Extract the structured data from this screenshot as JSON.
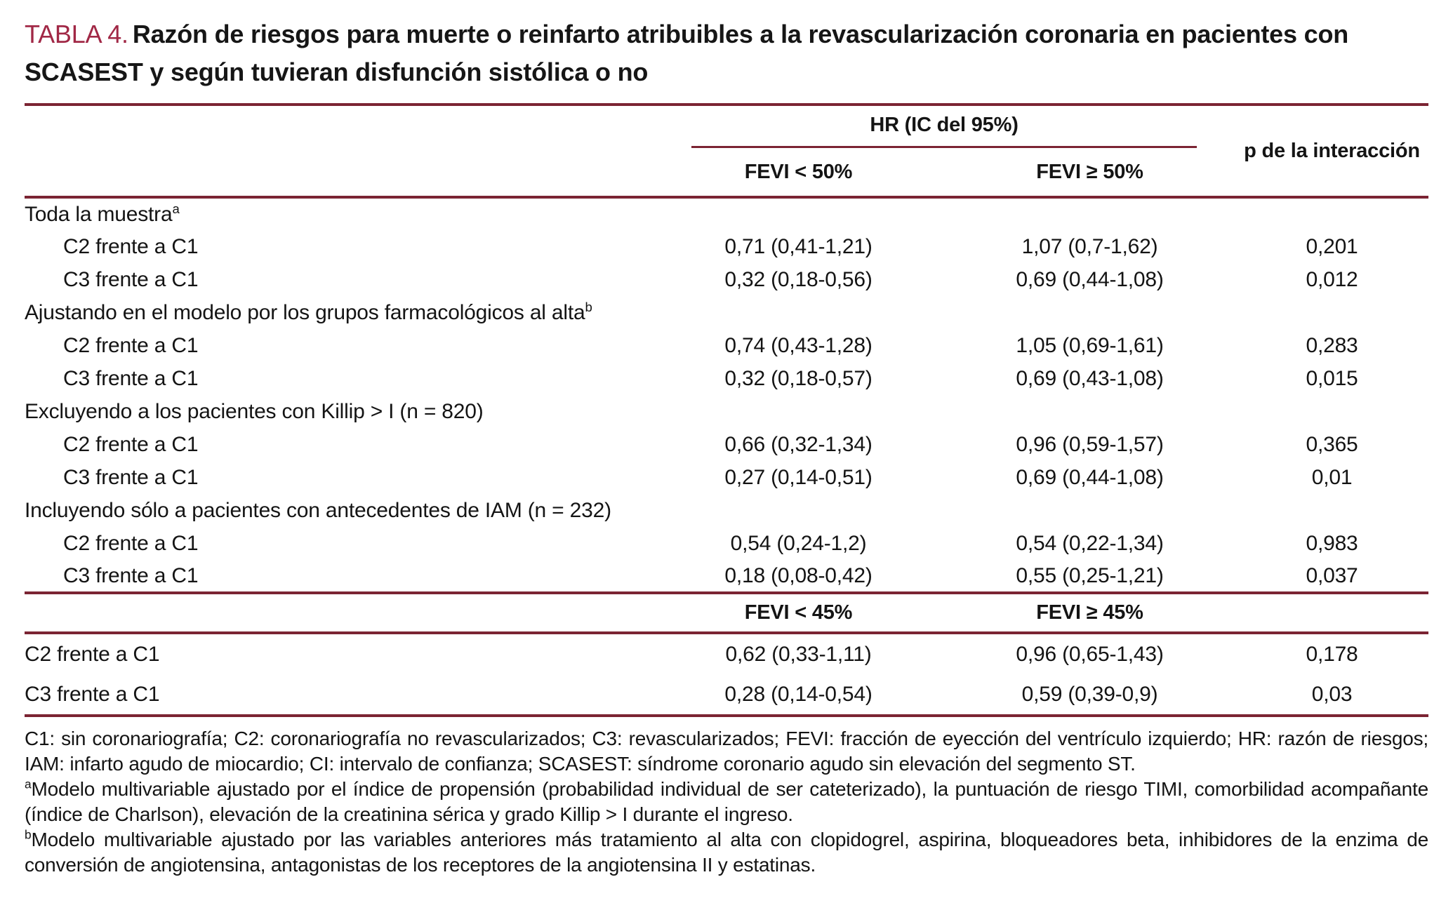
{
  "title": {
    "label": "TABLA 4.",
    "line1": "Razón de riesgos para muerte o reinfarto atribuibles a la revascularización coronaria en pacientes con",
    "line2": "SCASEST y según tuvieran disfunción sistólica o no"
  },
  "colors": {
    "rule": "#7B2433",
    "table_number": "#A12846",
    "text": "#141414"
  },
  "table": {
    "span_header": "HR (IC del 95%)",
    "p_header": "p de la interacción",
    "upper_columns": [
      "FEVI < 50%",
      "FEVI ≥ 50%"
    ],
    "lower_columns": [
      "FEVI < 45%",
      "FEVI ≥ 45%"
    ],
    "sections": [
      {
        "header": "Toda la muestra",
        "header_sup": "a",
        "rows": [
          {
            "label": "C2 frente a C1",
            "fevi_lt": "0,71 (0,41-1,21)",
            "fevi_ge": "1,07 (0,7-1,62)",
            "p": "0,201"
          },
          {
            "label": "C3 frente a C1",
            "fevi_lt": "0,32 (0,18-0,56)",
            "fevi_ge": "0,69 (0,44-1,08)",
            "p": "0,012"
          }
        ]
      },
      {
        "header": "Ajustando en el modelo por los grupos farmacológicos al alta",
        "header_sup": "b",
        "rows": [
          {
            "label": "C2 frente a C1",
            "fevi_lt": "0,74 (0,43-1,28)",
            "fevi_ge": "1,05 (0,69-1,61)",
            "p": "0,283"
          },
          {
            "label": "C3 frente a C1",
            "fevi_lt": "0,32 (0,18-0,57)",
            "fevi_ge": "0,69 (0,43-1,08)",
            "p": "0,015"
          }
        ]
      },
      {
        "header": "Excluyendo a los pacientes con Killip > I (n = 820)",
        "header_sup": "",
        "rows": [
          {
            "label": "C2 frente a C1",
            "fevi_lt": "0,66 (0,32-1,34)",
            "fevi_ge": "0,96 (0,59-1,57)",
            "p": "0,365"
          },
          {
            "label": "C3 frente a C1",
            "fevi_lt": "0,27 (0,14-0,51)",
            "fevi_ge": "0,69 (0,44-1,08)",
            "p": "0,01"
          }
        ]
      },
      {
        "header": "Incluyendo sólo a pacientes con antecedentes de IAM (n = 232)",
        "header_sup": "",
        "rows": [
          {
            "label": "C2 frente a C1",
            "fevi_lt": "0,54 (0,24-1,2)",
            "fevi_ge": "0,54 (0,22-1,34)",
            "p": "0,983"
          },
          {
            "label": "C3 frente a C1",
            "fevi_lt": "0,18 (0,08-0,42)",
            "fevi_ge": "0,55 (0,25-1,21)",
            "p": "0,037"
          }
        ]
      }
    ],
    "lower_rows": [
      {
        "label": "C2 frente a C1",
        "fevi_lt": "0,62 (0,33-1,11)",
        "fevi_ge": "0,96 (0,65-1,43)",
        "p": "0,178"
      },
      {
        "label": "C3 frente a C1",
        "fevi_lt": "0,28 (0,14-0,54)",
        "fevi_ge": "0,59 (0,39-0,9)",
        "p": "0,03"
      }
    ]
  },
  "footnotes": {
    "abbreviations": "C1: sin coronariografía; C2: coronariografía no revascularizados; C3: revascularizados; FEVI: fracción de eyección del ventrículo izquierdo; HR: razón de riesgos; IAM: infarto agudo de miocardio; CI: intervalo de confianza; SCASEST: síndrome coronario agudo sin elevación del segmento ST.",
    "note_a_sup": "a",
    "note_a": "Modelo multivariable ajustado por el índice de propensión (probabilidad individual de ser cateterizado), la puntuación de riesgo TIMI, comorbilidad acompañante (índice de Charlson), elevación de la creatinina sérica y grado Killip > I durante el ingreso.",
    "note_b_sup": "b",
    "note_b": "Modelo multivariable ajustado por las variables anteriores más tratamiento al alta con clopidogrel, aspirina, bloqueadores beta, inhibidores de la enzima de conversión de angiotensina, antagonistas de los receptores de la angiotensina II y estatinas."
  }
}
